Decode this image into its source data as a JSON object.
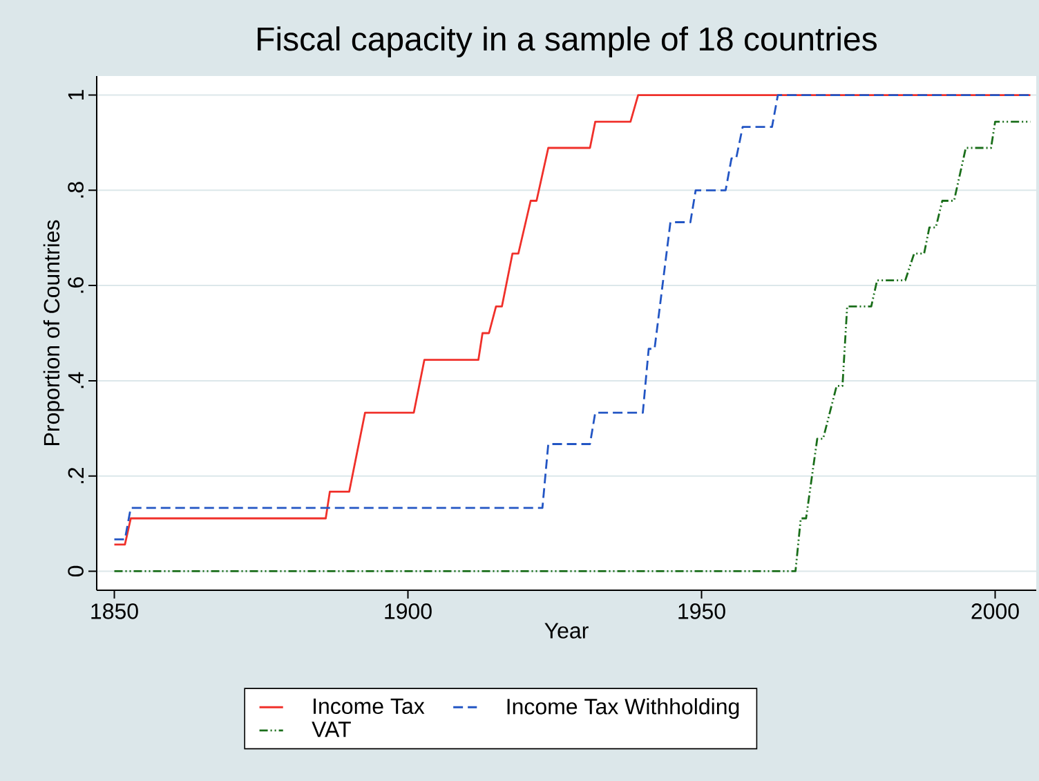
{
  "chart_data": {
    "type": "line",
    "title": "Fiscal capacity in a sample of 18 countries",
    "xlabel": "Year",
    "ylabel": "Proportion of Countries",
    "xlim": [
      1847,
      2007
    ],
    "xticks": [
      1850,
      1900,
      1950,
      2000
    ],
    "ylim": [
      -0.04,
      1.04
    ],
    "yticks": [
      {
        "value": 0,
        "label": "0"
      },
      {
        "value": 0.2,
        "label": ".2"
      },
      {
        "value": 0.4,
        "label": ".4"
      },
      {
        "value": 0.6,
        "label": ".6"
      },
      {
        "value": 0.8,
        "label": ".8"
      },
      {
        "value": 1,
        "label": "1"
      }
    ],
    "grid": "y",
    "legend": "bottom",
    "marker": "none",
    "series": [
      {
        "name": "Income Tax",
        "color": "#f0302a",
        "line_style": "solid",
        "x": [
          1850,
          1851.8,
          1852.8,
          1886,
          1886.7,
          1890,
          1892.7,
          1901,
          1902.8,
          1912,
          1912.7,
          1913.8,
          1915,
          1916,
          1917.8,
          1918.8,
          1920.9,
          1921.9,
          1923.9,
          1931,
          1931.9,
          1937.9,
          1939.2,
          2006
        ],
        "values": [
          0.056,
          0.056,
          0.111,
          0.111,
          0.167,
          0.167,
          0.333,
          0.333,
          0.444,
          0.444,
          0.5,
          0.5,
          0.556,
          0.556,
          0.667,
          0.667,
          0.778,
          0.778,
          0.889,
          0.889,
          0.944,
          0.944,
          1,
          1
        ]
      },
      {
        "name": "Income Tax Withholding",
        "color": "#2255c4",
        "line_style": "dashed",
        "x": [
          1850,
          1851.8,
          1852.8,
          1922.9,
          1923.9,
          1931,
          1931.9,
          1940,
          1941,
          1942,
          1944.7,
          1948.1,
          1949,
          1954.1,
          1955.1,
          1955.9,
          1957,
          1962,
          1963,
          2006
        ],
        "values": [
          0.067,
          0.067,
          0.133,
          0.133,
          0.267,
          0.267,
          0.333,
          0.333,
          0.467,
          0.467,
          0.733,
          0.733,
          0.8,
          0.8,
          0.867,
          0.867,
          0.933,
          0.933,
          1,
          1
        ]
      },
      {
        "name": "VAT",
        "color": "#1a6e1a",
        "line_style": "dashdotted",
        "x": [
          1850,
          1966,
          1966.9,
          1967.8,
          1969.7,
          1970.7,
          1973,
          1974,
          1974.8,
          1978.9,
          1979.9,
          1984.7,
          1986.2,
          1987.9,
          1988.8,
          1989.9,
          1991,
          1993,
          1995,
          1999.3,
          2000,
          2006
        ],
        "values": [
          0,
          0,
          0.111,
          0.111,
          0.278,
          0.278,
          0.389,
          0.389,
          0.556,
          0.556,
          0.611,
          0.611,
          0.667,
          0.667,
          0.722,
          0.722,
          0.778,
          0.778,
          0.889,
          0.889,
          0.944,
          0.944
        ]
      }
    ]
  }
}
